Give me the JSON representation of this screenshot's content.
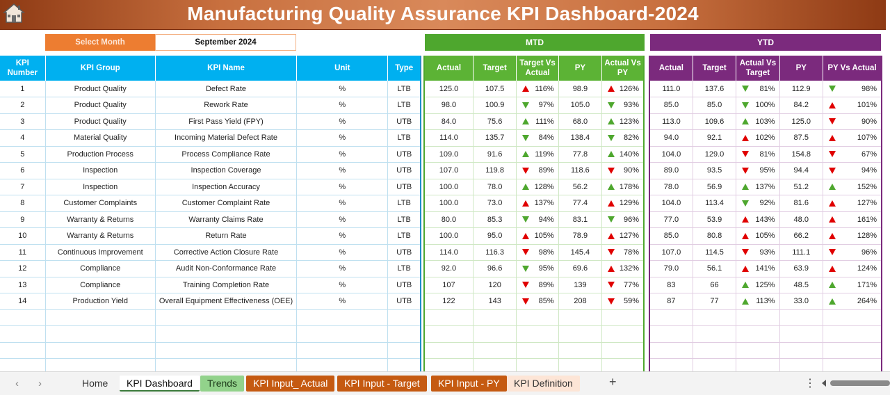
{
  "title": "Manufacturing Quality Assurance KPI Dashboard-2024",
  "controls": {
    "select_month_label": "Select Month",
    "select_month_value": "September 2024",
    "mtd_label": "MTD",
    "ytd_label": "YTD"
  },
  "colors": {
    "up_green": "#4ea72e",
    "down_red": "#e00000",
    "mtd": "#4ea72e",
    "ytd": "#7b2a7d",
    "kpi_header": "#00b0f0",
    "banner": "#c8703f"
  },
  "headers": {
    "left": [
      "KPI Number",
      "KPI Group",
      "KPI Name",
      "Unit",
      "Type"
    ],
    "mtd": [
      "Actual",
      "Target",
      "Target Vs Actual",
      "PY",
      "Actual Vs PY"
    ],
    "ytd": [
      "Actual",
      "Target",
      "Actual Vs Target",
      "PY",
      "PY Vs Actual"
    ]
  },
  "rows": [
    {
      "no": "1",
      "group": "Product Quality",
      "name": "Defect Rate",
      "unit": "%",
      "type": "LTB",
      "m_act": "125.0",
      "m_tgt": "107.5",
      "m_tva": "116%",
      "m_tva_dir": "up",
      "m_tva_col": "red",
      "m_py": "98.9",
      "m_avp": "126%",
      "m_avp_dir": "up",
      "m_avp_col": "red",
      "y_act": "111.0",
      "y_tgt": "137.6",
      "y_avt": "81%",
      "y_avt_dir": "down",
      "y_avt_col": "green",
      "y_py": "112.9",
      "y_pva": "98%",
      "y_pva_dir": "down",
      "y_pva_col": "green"
    },
    {
      "no": "2",
      "group": "Product Quality",
      "name": "Rework Rate",
      "unit": "%",
      "type": "LTB",
      "m_act": "98.0",
      "m_tgt": "100.9",
      "m_tva": "97%",
      "m_tva_dir": "down",
      "m_tva_col": "green",
      "m_py": "105.0",
      "m_avp": "93%",
      "m_avp_dir": "down",
      "m_avp_col": "green",
      "y_act": "85.0",
      "y_tgt": "85.0",
      "y_avt": "100%",
      "y_avt_dir": "down",
      "y_avt_col": "green",
      "y_py": "84.2",
      "y_pva": "101%",
      "y_pva_dir": "up",
      "y_pva_col": "red"
    },
    {
      "no": "3",
      "group": "Product Quality",
      "name": "First Pass Yield (FPY)",
      "unit": "%",
      "type": "UTB",
      "m_act": "84.0",
      "m_tgt": "75.6",
      "m_tva": "111%",
      "m_tva_dir": "up",
      "m_tva_col": "green",
      "m_py": "68.0",
      "m_avp": "123%",
      "m_avp_dir": "up",
      "m_avp_col": "green",
      "y_act": "113.0",
      "y_tgt": "109.6",
      "y_avt": "103%",
      "y_avt_dir": "up",
      "y_avt_col": "green",
      "y_py": "125.0",
      "y_pva": "90%",
      "y_pva_dir": "down",
      "y_pva_col": "red"
    },
    {
      "no": "4",
      "group": "Material Quality",
      "name": "Incoming Material Defect Rate",
      "unit": "%",
      "type": "LTB",
      "m_act": "114.0",
      "m_tgt": "135.7",
      "m_tva": "84%",
      "m_tva_dir": "down",
      "m_tva_col": "green",
      "m_py": "138.4",
      "m_avp": "82%",
      "m_avp_dir": "down",
      "m_avp_col": "green",
      "y_act": "94.0",
      "y_tgt": "92.1",
      "y_avt": "102%",
      "y_avt_dir": "up",
      "y_avt_col": "red",
      "y_py": "87.5",
      "y_pva": "107%",
      "y_pva_dir": "up",
      "y_pva_col": "red"
    },
    {
      "no": "5",
      "group": "Production Process",
      "name": "Process Compliance Rate",
      "unit": "%",
      "type": "UTB",
      "m_act": "109.0",
      "m_tgt": "91.6",
      "m_tva": "119%",
      "m_tva_dir": "up",
      "m_tva_col": "green",
      "m_py": "77.8",
      "m_avp": "140%",
      "m_avp_dir": "up",
      "m_avp_col": "green",
      "y_act": "104.0",
      "y_tgt": "129.0",
      "y_avt": "81%",
      "y_avt_dir": "down",
      "y_avt_col": "red",
      "y_py": "154.8",
      "y_pva": "67%",
      "y_pva_dir": "down",
      "y_pva_col": "red"
    },
    {
      "no": "6",
      "group": "Inspection",
      "name": "Inspection Coverage",
      "unit": "%",
      "type": "UTB",
      "m_act": "107.0",
      "m_tgt": "119.8",
      "m_tva": "89%",
      "m_tva_dir": "down",
      "m_tva_col": "red",
      "m_py": "118.6",
      "m_avp": "90%",
      "m_avp_dir": "down",
      "m_avp_col": "red",
      "y_act": "89.0",
      "y_tgt": "93.5",
      "y_avt": "95%",
      "y_avt_dir": "down",
      "y_avt_col": "red",
      "y_py": "94.4",
      "y_pva": "94%",
      "y_pva_dir": "down",
      "y_pva_col": "red"
    },
    {
      "no": "7",
      "group": "Inspection",
      "name": "Inspection Accuracy",
      "unit": "%",
      "type": "UTB",
      "m_act": "100.0",
      "m_tgt": "78.0",
      "m_tva": "128%",
      "m_tva_dir": "up",
      "m_tva_col": "green",
      "m_py": "56.2",
      "m_avp": "178%",
      "m_avp_dir": "up",
      "m_avp_col": "green",
      "y_act": "78.0",
      "y_tgt": "56.9",
      "y_avt": "137%",
      "y_avt_dir": "up",
      "y_avt_col": "green",
      "y_py": "51.2",
      "y_pva": "152%",
      "y_pva_dir": "up",
      "y_pva_col": "green"
    },
    {
      "no": "8",
      "group": "Customer Complaints",
      "name": "Customer Complaint Rate",
      "unit": "%",
      "type": "LTB",
      "m_act": "100.0",
      "m_tgt": "73.0",
      "m_tva": "137%",
      "m_tva_dir": "up",
      "m_tva_col": "red",
      "m_py": "77.4",
      "m_avp": "129%",
      "m_avp_dir": "up",
      "m_avp_col": "red",
      "y_act": "104.0",
      "y_tgt": "113.4",
      "y_avt": "92%",
      "y_avt_dir": "down",
      "y_avt_col": "green",
      "y_py": "81.6",
      "y_pva": "127%",
      "y_pva_dir": "up",
      "y_pva_col": "red"
    },
    {
      "no": "9",
      "group": "Warranty & Returns",
      "name": "Warranty Claims Rate",
      "unit": "%",
      "type": "LTB",
      "m_act": "80.0",
      "m_tgt": "85.3",
      "m_tva": "94%",
      "m_tva_dir": "down",
      "m_tva_col": "green",
      "m_py": "83.1",
      "m_avp": "96%",
      "m_avp_dir": "down",
      "m_avp_col": "green",
      "y_act": "77.0",
      "y_tgt": "53.9",
      "y_avt": "143%",
      "y_avt_dir": "up",
      "y_avt_col": "red",
      "y_py": "48.0",
      "y_pva": "161%",
      "y_pva_dir": "up",
      "y_pva_col": "red"
    },
    {
      "no": "10",
      "group": "Warranty & Returns",
      "name": "Return Rate",
      "unit": "%",
      "type": "LTB",
      "m_act": "100.0",
      "m_tgt": "95.0",
      "m_tva": "105%",
      "m_tva_dir": "up",
      "m_tva_col": "red",
      "m_py": "78.9",
      "m_avp": "127%",
      "m_avp_dir": "up",
      "m_avp_col": "red",
      "y_act": "85.0",
      "y_tgt": "80.8",
      "y_avt": "105%",
      "y_avt_dir": "up",
      "y_avt_col": "red",
      "y_py": "66.2",
      "y_pva": "128%",
      "y_pva_dir": "up",
      "y_pva_col": "red"
    },
    {
      "no": "11",
      "group": "Continuous Improvement",
      "name": "Corrective Action Closure Rate",
      "unit": "%",
      "type": "UTB",
      "m_act": "114.0",
      "m_tgt": "116.3",
      "m_tva": "98%",
      "m_tva_dir": "down",
      "m_tva_col": "red",
      "m_py": "145.4",
      "m_avp": "78%",
      "m_avp_dir": "down",
      "m_avp_col": "red",
      "y_act": "107.0",
      "y_tgt": "114.5",
      "y_avt": "93%",
      "y_avt_dir": "down",
      "y_avt_col": "red",
      "y_py": "111.1",
      "y_pva": "96%",
      "y_pva_dir": "down",
      "y_pva_col": "red"
    },
    {
      "no": "12",
      "group": "Compliance",
      "name": "Audit Non-Conformance Rate",
      "unit": "%",
      "type": "LTB",
      "m_act": "92.0",
      "m_tgt": "96.6",
      "m_tva": "95%",
      "m_tva_dir": "down",
      "m_tva_col": "green",
      "m_py": "69.6",
      "m_avp": "132%",
      "m_avp_dir": "up",
      "m_avp_col": "red",
      "y_act": "79.0",
      "y_tgt": "56.1",
      "y_avt": "141%",
      "y_avt_dir": "up",
      "y_avt_col": "red",
      "y_py": "63.9",
      "y_pva": "124%",
      "y_pva_dir": "up",
      "y_pva_col": "red"
    },
    {
      "no": "13",
      "group": "Compliance",
      "name": "Training Completion Rate",
      "unit": "%",
      "type": "UTB",
      "m_act": "107",
      "m_tgt": "120",
      "m_tva": "89%",
      "m_tva_dir": "down",
      "m_tva_col": "red",
      "m_py": "139",
      "m_avp": "77%",
      "m_avp_dir": "down",
      "m_avp_col": "red",
      "y_act": "83",
      "y_tgt": "66",
      "y_avt": "125%",
      "y_avt_dir": "up",
      "y_avt_col": "green",
      "y_py": "48.5",
      "y_pva": "171%",
      "y_pva_dir": "up",
      "y_pva_col": "green"
    },
    {
      "no": "14",
      "group": "Production Yield",
      "name": "Overall Equipment Effectiveness (OEE)",
      "unit": "%",
      "type": "UTB",
      "m_act": "122",
      "m_tgt": "143",
      "m_tva": "85%",
      "m_tva_dir": "down",
      "m_tva_col": "red",
      "m_py": "208",
      "m_avp": "59%",
      "m_avp_dir": "down",
      "m_avp_col": "red",
      "y_act": "87",
      "y_tgt": "77",
      "y_avt": "113%",
      "y_avt_dir": "up",
      "y_avt_col": "green",
      "y_py": "33.0",
      "y_pva": "264%",
      "y_pva_dir": "up",
      "y_pva_col": "green"
    }
  ],
  "empty_rows": 4,
  "sheet_tabs": {
    "home": "Home",
    "dashboard": "KPI Dashboard",
    "trends": "Trends",
    "input_actual": "KPI Input_ Actual",
    "input_target": "KPI Input - Target",
    "input_py": "KPI Input - PY",
    "definition": "KPI Definition",
    "add": "+",
    "more": "⋮",
    "prev": "‹",
    "next": "›"
  },
  "icons": {
    "home": "home-icon"
  }
}
